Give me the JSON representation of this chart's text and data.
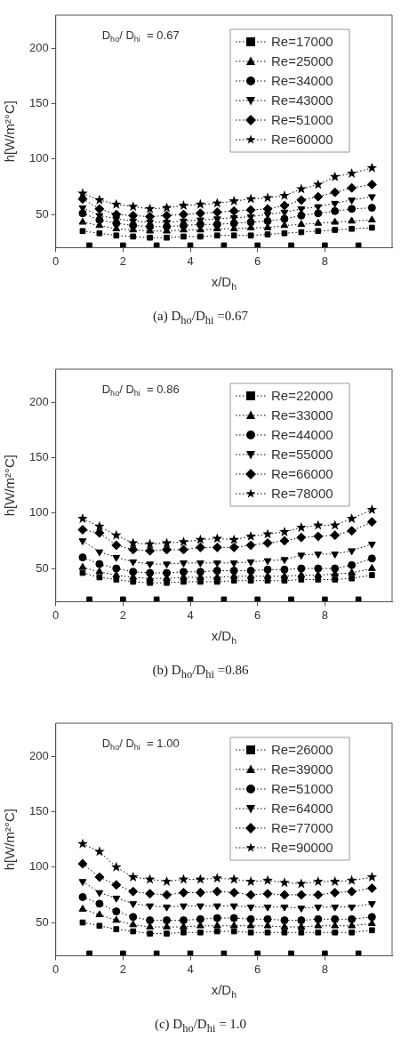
{
  "chart_data": [
    {
      "type": "line",
      "title": "(a)  D$_{ho}$/D$_{hi}$ =0.67",
      "xlabel": "x/D$_{h}$",
      "ylabel": "h[W/m²°C]",
      "annotations": [
        "D$_{ho}$/ D$_{hi}$  = 0.67"
      ],
      "x": [
        0.8,
        1.3,
        1.8,
        2.3,
        2.8,
        3.3,
        3.8,
        4.3,
        4.8,
        5.3,
        5.8,
        6.3,
        6.8,
        7.3,
        7.8,
        8.3,
        8.8,
        9.4
      ],
      "xlim": [
        0,
        10
      ],
      "xticks": [
        0,
        2,
        4,
        6,
        8
      ],
      "ylim": [
        20,
        230
      ],
      "yticks": [
        50,
        100,
        150,
        200
      ],
      "grid": false,
      "legend": "top right",
      "line_style": "dotted",
      "series": [
        {
          "name": "Re=17000",
          "color": "#000000",
          "marker": "square",
          "values": [
            35,
            33,
            31,
            30,
            29,
            29,
            30,
            30,
            31,
            31,
            31,
            32,
            33,
            34,
            35,
            36,
            37,
            38
          ]
        },
        {
          "name": "Re=25000",
          "color": "#000000",
          "marker": "triangle",
          "values": [
            43,
            40,
            37,
            36,
            35,
            35,
            36,
            36,
            37,
            37,
            38,
            38,
            40,
            41,
            42,
            43,
            44,
            45
          ]
        },
        {
          "name": "Re=34000",
          "color": "#000000",
          "marker": "circle",
          "values": [
            51,
            45,
            42,
            40,
            39,
            39,
            40,
            41,
            41,
            42,
            43,
            44,
            46,
            49,
            51,
            53,
            55,
            56
          ]
        },
        {
          "name": "Re=43000",
          "color": "#000000",
          "marker": "triangle-down",
          "values": [
            56,
            49,
            46,
            44,
            43,
            43,
            44,
            45,
            46,
            47,
            48,
            50,
            52,
            55,
            57,
            60,
            63,
            66
          ]
        },
        {
          "name": "Re=51000",
          "color": "#000000",
          "marker": "diamond",
          "values": [
            64,
            55,
            50,
            49,
            48,
            49,
            50,
            51,
            52,
            53,
            54,
            55,
            58,
            63,
            66,
            70,
            74,
            77
          ]
        },
        {
          "name": "Re=60000",
          "color": "#000000",
          "marker": "star",
          "values": [
            69,
            63,
            59,
            57,
            55,
            56,
            58,
            59,
            60,
            62,
            64,
            65,
            67,
            73,
            77,
            84,
            87,
            92
          ]
        },
        {
          "type": "scatter",
          "color": "#000000",
          "marker": "square",
          "x": [
            1,
            2,
            3,
            4,
            5,
            6,
            7,
            8,
            9
          ],
          "values": [
            22,
            22,
            22,
            22,
            22,
            22,
            22,
            22,
            22
          ]
        }
      ]
    },
    {
      "type": "line",
      "title": "(b)  D$_{ho}$/D$_{hi}$ =0.86",
      "xlabel": "x/D$_{h}$",
      "ylabel": "h[W/m²°C]",
      "annotations": [
        "D$_{ho}$/ D$_{hi}$  = 0.86"
      ],
      "x": [
        0.8,
        1.3,
        1.8,
        2.3,
        2.8,
        3.3,
        3.8,
        4.3,
        4.8,
        5.3,
        5.8,
        6.3,
        6.8,
        7.3,
        7.8,
        8.3,
        8.8,
        9.4
      ],
      "xlim": [
        0,
        10
      ],
      "xticks": [
        0,
        2,
        4,
        6,
        8
      ],
      "ylim": [
        20,
        230
      ],
      "yticks": [
        50,
        100,
        150,
        200
      ],
      "grid": false,
      "legend": "top right",
      "line_style": "dotted",
      "series": [
        {
          "name": "Re=22000",
          "color": "#000000",
          "marker": "square",
          "values": [
            46,
            42,
            40,
            38,
            37,
            37,
            38,
            38,
            38,
            39,
            39,
            39,
            39,
            40,
            40,
            40,
            41,
            44
          ]
        },
        {
          "name": "Re=33000",
          "color": "#000000",
          "marker": "triangle",
          "values": [
            51,
            47,
            44,
            42,
            41,
            41,
            42,
            42,
            42,
            43,
            43,
            43,
            43,
            44,
            44,
            45,
            46,
            50
          ]
        },
        {
          "name": "Re=44000",
          "color": "#000000",
          "marker": "circle",
          "values": [
            60,
            54,
            50,
            47,
            46,
            46,
            47,
            47,
            48,
            48,
            48,
            49,
            49,
            50,
            50,
            50,
            53,
            59
          ]
        },
        {
          "name": "Re=55000",
          "color": "#000000",
          "marker": "triangle-down",
          "values": [
            75,
            65,
            60,
            56,
            54,
            54,
            55,
            55,
            55,
            55,
            56,
            57,
            58,
            62,
            63,
            63,
            66,
            72
          ]
        },
        {
          "name": "Re=66000",
          "color": "#000000",
          "marker": "diamond",
          "values": [
            85,
            82,
            71,
            67,
            66,
            67,
            67,
            69,
            69,
            69,
            71,
            73,
            75,
            78,
            79,
            80,
            84,
            92
          ]
        },
        {
          "name": "Re=78000",
          "color": "#000000",
          "marker": "star",
          "values": [
            95,
            88,
            80,
            73,
            72,
            73,
            74,
            76,
            77,
            76,
            79,
            81,
            83,
            87,
            89,
            89,
            95,
            103
          ]
        },
        {
          "type": "scatter",
          "color": "#000000",
          "marker": "square",
          "x": [
            1,
            2,
            3,
            4,
            5,
            6,
            7,
            8,
            9
          ],
          "values": [
            22,
            22,
            22,
            22,
            22,
            22,
            22,
            22,
            22
          ]
        }
      ]
    },
    {
      "type": "line",
      "title": "(c)  D$_{ho}$/D$_{hi}$ =  1.0",
      "xlabel": "x/D$_{h}$",
      "ylabel": "h[W/m²°C]",
      "annotations": [
        "D$_{ho}$/ D$_{hi}$  = 1.00"
      ],
      "x": [
        0.8,
        1.3,
        1.8,
        2.3,
        2.8,
        3.3,
        3.8,
        4.3,
        4.8,
        5.3,
        5.8,
        6.3,
        6.8,
        7.3,
        7.8,
        8.3,
        8.8,
        9.4
      ],
      "xlim": [
        0,
        10
      ],
      "xticks": [
        0,
        2,
        4,
        6,
        8
      ],
      "ylim": [
        20,
        230
      ],
      "yticks": [
        50,
        100,
        150,
        200
      ],
      "grid": false,
      "legend": "top right",
      "line_style": "dotted",
      "series": [
        {
          "name": "Re=26000",
          "color": "#000000",
          "marker": "square",
          "values": [
            50,
            47,
            44,
            42,
            40,
            40,
            41,
            41,
            42,
            42,
            41,
            41,
            41,
            41,
            41,
            41,
            41,
            43
          ]
        },
        {
          "name": "Re=39000",
          "color": "#000000",
          "marker": "triangle",
          "values": [
            62,
            57,
            52,
            48,
            46,
            46,
            46,
            47,
            47,
            47,
            47,
            47,
            46,
            46,
            47,
            47,
            47,
            49
          ]
        },
        {
          "name": "Re=51000",
          "color": "#000000",
          "marker": "circle",
          "values": [
            73,
            67,
            60,
            55,
            52,
            52,
            52,
            53,
            54,
            54,
            53,
            53,
            52,
            52,
            53,
            53,
            53,
            55
          ]
        },
        {
          "name": "Re=64000",
          "color": "#000000",
          "marker": "triangle-down",
          "values": [
            87,
            77,
            72,
            67,
            65,
            64,
            65,
            65,
            65,
            65,
            64,
            64,
            64,
            63,
            64,
            64,
            64,
            67
          ]
        },
        {
          "name": "Re=77000",
          "color": "#000000",
          "marker": "diamond",
          "values": [
            103,
            91,
            84,
            78,
            76,
            75,
            77,
            77,
            78,
            77,
            75,
            76,
            75,
            75,
            75,
            77,
            78,
            81
          ]
        },
        {
          "name": "Re=90000",
          "color": "#000000",
          "marker": "star",
          "values": [
            121,
            114,
            100,
            91,
            89,
            87,
            89,
            89,
            90,
            89,
            87,
            88,
            86,
            85,
            87,
            87,
            88,
            91
          ]
        },
        {
          "type": "scatter",
          "color": "#000000",
          "marker": "square",
          "x": [
            1,
            2,
            3,
            4,
            5,
            6,
            7,
            8,
            9
          ],
          "values": [
            22,
            22,
            22,
            22,
            22,
            22,
            22,
            22,
            22
          ]
        }
      ]
    }
  ]
}
